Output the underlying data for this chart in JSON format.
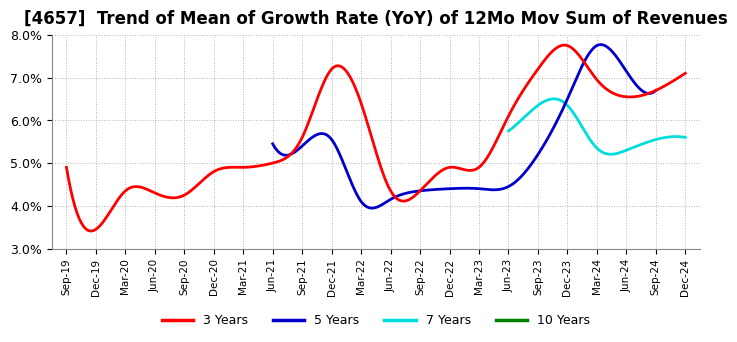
{
  "title": "[4657]  Trend of Mean of Growth Rate (YoY) of 12Mo Mov Sum of Revenues",
  "ylim": [
    0.03,
    0.08
  ],
  "yticks": [
    0.03,
    0.04,
    0.05,
    0.06,
    0.07,
    0.08
  ],
  "ytick_labels": [
    "3.0%",
    "4.0%",
    "5.0%",
    "6.0%",
    "7.0%",
    "8.0%"
  ],
  "x_labels": [
    "Sep-19",
    "Dec-19",
    "Mar-20",
    "Jun-20",
    "Sep-20",
    "Dec-20",
    "Mar-21",
    "Jun-21",
    "Sep-21",
    "Dec-21",
    "Mar-22",
    "Jun-22",
    "Sep-22",
    "Dec-22",
    "Mar-23",
    "Jun-23",
    "Sep-23",
    "Dec-23",
    "Mar-24",
    "Jun-24",
    "Sep-24",
    "Dec-24"
  ],
  "series_3y_x": [
    0,
    1,
    2,
    3,
    4,
    5,
    6,
    7,
    8,
    9,
    10,
    11,
    12,
    13,
    14,
    15,
    16,
    17,
    18,
    19,
    20,
    21
  ],
  "series_3y_y": [
    0.049,
    0.0345,
    0.0435,
    0.043,
    0.0425,
    0.048,
    0.049,
    0.05,
    0.056,
    0.072,
    0.064,
    0.0435,
    0.0435,
    0.049,
    0.049,
    0.061,
    0.072,
    0.0775,
    0.0695,
    0.0655,
    0.067,
    0.071
  ],
  "series_5y_x": [
    7,
    8,
    9,
    10,
    11,
    12,
    13,
    14,
    15,
    16,
    17,
    18,
    19,
    20
  ],
  "series_5y_y": [
    0.0545,
    0.054,
    0.0555,
    0.041,
    0.0415,
    0.0435,
    0.044,
    0.044,
    0.0445,
    0.052,
    0.065,
    0.0775,
    0.0715,
    0.067
  ],
  "series_7y_x": [
    15,
    16,
    17,
    18,
    19,
    20,
    21
  ],
  "series_7y_y": [
    0.0575,
    0.0635,
    0.0635,
    0.0535,
    0.053,
    0.0555,
    0.056
  ],
  "series_10y_x": [],
  "series_10y_y": [],
  "color_3y": "#FF0000",
  "color_5y": "#0000CC",
  "color_7y": "#00DDDD",
  "color_10y": "#008000",
  "background_color": "#FFFFFF",
  "plot_bg_color": "#FFFFFF",
  "grid_color": "#AAAAAA",
  "title_fontsize": 12,
  "legend_labels": [
    "3 Years",
    "5 Years",
    "7 Years",
    "10 Years"
  ]
}
